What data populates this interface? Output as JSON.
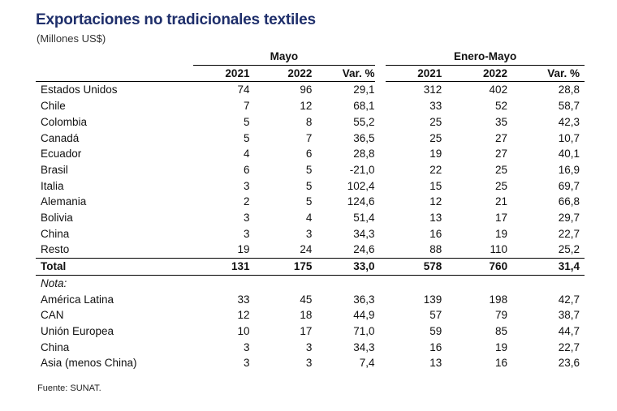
{
  "title": "Exportaciones no tradicionales textiles",
  "subtitle": "(Millones US$)",
  "groups": [
    "Mayo",
    "Enero-Mayo"
  ],
  "columns": [
    "2021",
    "2022",
    "Var. %",
    "2021",
    "2022",
    "Var. %"
  ],
  "rows": [
    {
      "label": "Estados Unidos",
      "v": [
        "74",
        "96",
        "29,1",
        "312",
        "402",
        "28,8"
      ]
    },
    {
      "label": "Chile",
      "v": [
        "7",
        "12",
        "68,1",
        "33",
        "52",
        "58,7"
      ]
    },
    {
      "label": "Colombia",
      "v": [
        "5",
        "8",
        "55,2",
        "25",
        "35",
        "42,3"
      ]
    },
    {
      "label": "Canadá",
      "v": [
        "5",
        "7",
        "36,5",
        "25",
        "27",
        "10,7"
      ]
    },
    {
      "label": "Ecuador",
      "v": [
        "4",
        "6",
        "28,8",
        "19",
        "27",
        "40,1"
      ]
    },
    {
      "label": "Brasil",
      "v": [
        "6",
        "5",
        "-21,0",
        "22",
        "25",
        "16,9"
      ]
    },
    {
      "label": "Italia",
      "v": [
        "3",
        "5",
        "102,4",
        "15",
        "25",
        "69,7"
      ]
    },
    {
      "label": "Alemania",
      "v": [
        "2",
        "5",
        "124,6",
        "12",
        "21",
        "66,8"
      ]
    },
    {
      "label": "Bolivia",
      "v": [
        "3",
        "4",
        "51,4",
        "13",
        "17",
        "29,7"
      ]
    },
    {
      "label": "China",
      "v": [
        "3",
        "3",
        "34,3",
        "16",
        "19",
        "22,7"
      ]
    },
    {
      "label": "Resto",
      "v": [
        "19",
        "24",
        "24,6",
        "88",
        "110",
        "25,2"
      ]
    }
  ],
  "total": {
    "label": "Total",
    "v": [
      "131",
      "175",
      "33,0",
      "578",
      "760",
      "31,4"
    ]
  },
  "nota_label": "Nota:",
  "nota_rows": [
    {
      "label": "América Latina",
      "v": [
        "33",
        "45",
        "36,3",
        "139",
        "198",
        "42,7"
      ]
    },
    {
      "label": "CAN",
      "v": [
        "12",
        "18",
        "44,9",
        "57",
        "79",
        "38,7"
      ]
    },
    {
      "label": "Unión Europea",
      "v": [
        "10",
        "17",
        "71,0",
        "59",
        "85",
        "44,7"
      ]
    },
    {
      "label": "China",
      "v": [
        "3",
        "3",
        "34,3",
        "16",
        "19",
        "22,7"
      ]
    },
    {
      "label": "Asia (menos China)",
      "v": [
        "3",
        "3",
        "7,4",
        "13",
        "16",
        "23,6"
      ]
    }
  ],
  "source": "Fuente: SUNAT."
}
